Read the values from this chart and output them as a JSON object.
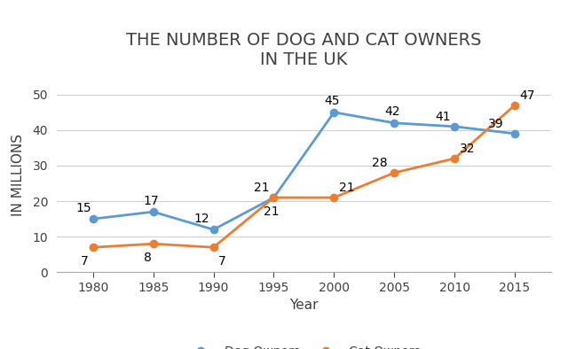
{
  "title": "THE NUMBER OF DOG AND CAT OWNERS\nIN THE UK",
  "xlabel": "Year",
  "ylabel": "IN MILLIONS",
  "years": [
    1980,
    1985,
    1990,
    1995,
    2000,
    2005,
    2010,
    2015
  ],
  "dog_owners": [
    15,
    17,
    12,
    21,
    45,
    42,
    41,
    39
  ],
  "cat_owners": [
    7,
    8,
    7,
    21,
    21,
    28,
    32,
    47
  ],
  "dog_color": "#5B9BD5",
  "cat_color": "#ED7D31",
  "ylim": [
    0,
    55
  ],
  "yticks": [
    0,
    10,
    20,
    30,
    40,
    50
  ],
  "background_color": "#ffffff",
  "legend_dog": "Dog Owners",
  "legend_cat": "Cat Owners",
  "title_fontsize": 14,
  "title_color": "#404040",
  "axis_label_fontsize": 11,
  "tick_fontsize": 10,
  "annotation_fontsize": 10,
  "legend_fontsize": 10,
  "linewidth": 2.0,
  "marker": "o",
  "markersize": 6,
  "dog_annotations": [
    {
      "i": 0,
      "val": 15,
      "ox": -14,
      "oy": 6
    },
    {
      "i": 1,
      "val": 17,
      "ox": -8,
      "oy": 6
    },
    {
      "i": 2,
      "val": 12,
      "ox": -16,
      "oy": 6
    },
    {
      "i": 3,
      "val": 21,
      "ox": -16,
      "oy": 5
    },
    {
      "i": 4,
      "val": 45,
      "ox": -8,
      "oy": 6
    },
    {
      "i": 5,
      "val": 42,
      "ox": -8,
      "oy": 6
    },
    {
      "i": 6,
      "val": 41,
      "ox": -16,
      "oy": 5
    },
    {
      "i": 7,
      "val": 39,
      "ox": -22,
      "oy": 5
    }
  ],
  "cat_annotations": [
    {
      "i": 0,
      "val": 7,
      "ox": -10,
      "oy": -14
    },
    {
      "i": 1,
      "val": 8,
      "ox": -8,
      "oy": -14
    },
    {
      "i": 2,
      "val": 7,
      "ox": 4,
      "oy": -14
    },
    {
      "i": 3,
      "val": 21,
      "ox": -8,
      "oy": -14
    },
    {
      "i": 4,
      "val": 21,
      "ox": 4,
      "oy": 5
    },
    {
      "i": 5,
      "val": 28,
      "ox": -18,
      "oy": 5
    },
    {
      "i": 6,
      "val": 32,
      "ox": 4,
      "oy": 5
    },
    {
      "i": 7,
      "val": 47,
      "ox": 4,
      "oy": 5
    }
  ]
}
